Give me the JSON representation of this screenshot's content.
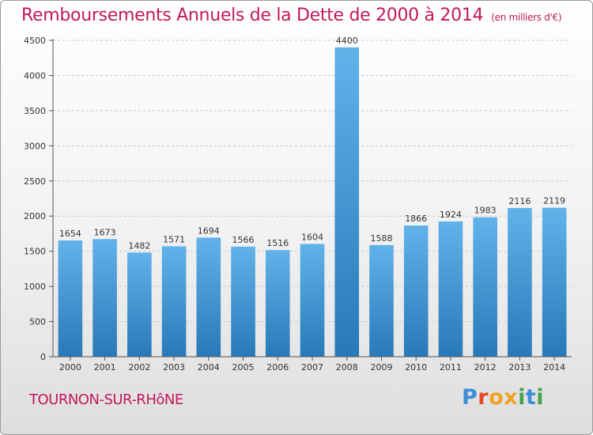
{
  "header": {
    "title": "Remboursements Annuels de la Dette de 2000 à 2014",
    "subtitle": "(en milliers d'€)"
  },
  "footer": {
    "commune": "TOURNON-SUR-RHôNE",
    "logo_letters": [
      {
        "ch": "P",
        "color": "#3e8ed8"
      },
      {
        "ch": "r",
        "color": "#e8472a"
      },
      {
        "ch": "o",
        "color": "#f0a320"
      },
      {
        "ch": "x",
        "color": "#f0a320"
      },
      {
        "ch": "i",
        "color": "#44a34b"
      },
      {
        "ch": "t",
        "color": "#3e8ed8"
      },
      {
        "ch": "i",
        "color": "#44a34b"
      }
    ]
  },
  "colors": {
    "title": "#c2185b",
    "bar_top": "#62b2ea",
    "bar_bottom": "#2779b8",
    "grid": "#c8c8c8",
    "axis": "#555555"
  },
  "chart_data": {
    "type": "bar",
    "title": "Remboursements Annuels de la Dette de 2000 à 2014",
    "subtitle": "(en milliers d'€)",
    "categories": [
      "2000",
      "2001",
      "2002",
      "2003",
      "2004",
      "2005",
      "2006",
      "2007",
      "2008",
      "2009",
      "2010",
      "2011",
      "2012",
      "2013",
      "2014"
    ],
    "values": [
      1654,
      1673,
      1482,
      1571,
      1694,
      1566,
      1516,
      1604,
      4400,
      1588,
      1866,
      1924,
      1983,
      2116,
      2119
    ],
    "ylim": [
      0,
      4500
    ],
    "yticks": [
      0,
      500,
      1000,
      1500,
      2000,
      2500,
      3000,
      3500,
      4000,
      4500
    ],
    "grid": true,
    "data_labels": true
  }
}
